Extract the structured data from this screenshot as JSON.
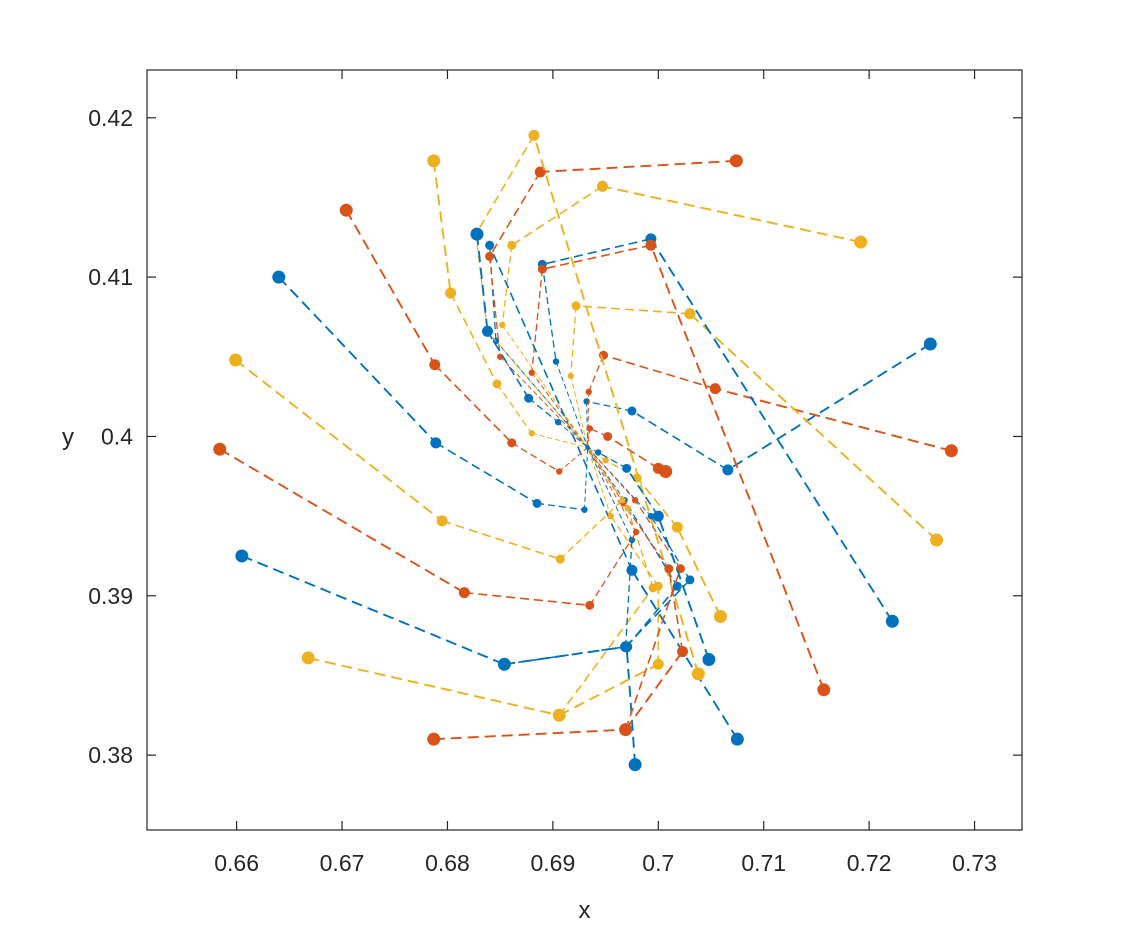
{
  "chart_data": {
    "type": "line",
    "title": "",
    "xlabel": "x",
    "ylabel": "y",
    "xlim": [
      0.6515,
      0.7345
    ],
    "ylim": [
      0.3753,
      0.423
    ],
    "xticks": [
      0.66,
      0.67,
      0.68,
      0.69,
      0.7,
      0.71,
      0.72,
      0.73
    ],
    "xtick_labels": [
      "0.66",
      "0.67",
      "0.68",
      "0.69",
      "0.7",
      "0.71",
      "0.72",
      "0.73"
    ],
    "yticks": [
      0.38,
      0.39,
      0.4,
      0.41,
      0.42
    ],
    "ytick_labels": [
      "0.38",
      "0.39",
      "0.4",
      "0.41",
      "0.42"
    ],
    "grid": false,
    "line_style": "dashed",
    "converge_to": [
      0.6933,
      0.3993
    ],
    "colors": [
      "#0072BD",
      "#D95319",
      "#EDB120"
    ],
    "series": [
      {
        "color": "#0072BD",
        "x": [
          0.7258,
          0.7066,
          0.6975,
          0.6932,
          0.6933
        ],
        "y": [
          0.4058,
          0.3979,
          0.4016,
          0.4022,
          0.3993
        ]
      },
      {
        "color": "#D95319",
        "x": [
          0.7278,
          0.7054,
          0.6948,
          0.6934,
          0.6933
        ],
        "y": [
          0.3991,
          0.403,
          0.4051,
          0.4028,
          0.3993
        ]
      },
      {
        "color": "#EDB120",
        "x": [
          0.7264,
          0.703,
          0.6922,
          0.6917,
          0.6933
        ],
        "y": [
          0.3935,
          0.4077,
          0.4082,
          0.4038,
          0.3993
        ]
      },
      {
        "color": "#0072BD",
        "x": [
          0.7222,
          0.6993,
          0.689,
          0.6903,
          0.6933
        ],
        "y": [
          0.3884,
          0.4124,
          0.4108,
          0.4047,
          0.3993
        ]
      },
      {
        "color": "#D95319",
        "x": [
          0.7157,
          0.6993,
          0.689,
          0.688,
          0.6933
        ],
        "y": [
          0.3841,
          0.412,
          0.4105,
          0.404,
          0.3993
        ]
      },
      {
        "color": "#EDB120",
        "x": [
          0.7192,
          0.6947,
          0.6861,
          0.6852,
          0.6933
        ],
        "y": [
          0.4122,
          0.4157,
          0.412,
          0.407,
          0.3993
        ]
      },
      {
        "color": "#0072BD",
        "x": [
          0.7075,
          0.6975,
          0.684,
          0.6846,
          0.6933
        ],
        "y": [
          0.381,
          0.3916,
          0.412,
          0.406,
          0.3993
        ]
      },
      {
        "color": "#D95319",
        "x": [
          0.7074,
          0.6888,
          0.684,
          0.685,
          0.6933
        ],
        "y": [
          0.4173,
          0.4166,
          0.4113,
          0.405,
          0.3993
        ]
      },
      {
        "color": "#EDB120",
        "x": [
          0.7038,
          0.6882,
          0.6827,
          0.6838,
          0.6933
        ],
        "y": [
          0.3851,
          0.4189,
          0.4127,
          0.4066,
          0.3993
        ]
      },
      {
        "color": "#0072BD",
        "x": [
          0.6978,
          0.697,
          0.7018,
          0.6968,
          0.6933
        ],
        "y": [
          0.3794,
          0.3868,
          0.3906,
          0.396,
          0.3993
        ]
      },
      {
        "color": "#D95319",
        "x": [
          0.6969,
          0.7023,
          0.701,
          0.6967,
          0.6933
        ],
        "y": [
          0.3816,
          0.3865,
          0.3917,
          0.3958,
          0.3993
        ]
      },
      {
        "color": "#EDB120",
        "x": [
          0.6906,
          0.7,
          0.7,
          0.6955,
          0.6933
        ],
        "y": [
          0.3825,
          0.3857,
          0.3906,
          0.395,
          0.3993
        ]
      },
      {
        "color": "#0072BD",
        "x": [
          0.6854,
          0.6969,
          0.703,
          0.6993,
          0.6933
        ],
        "y": [
          0.3857,
          0.3868,
          0.391,
          0.395,
          0.3993
        ]
      },
      {
        "color": "#D95319",
        "x": [
          0.6787,
          0.6969,
          0.7021,
          0.6978,
          0.6933
        ],
        "y": [
          0.381,
          0.3816,
          0.3917,
          0.396,
          0.3993
        ]
      },
      {
        "color": "#EDB120",
        "x": [
          0.6668,
          0.6906,
          0.6995,
          0.6971,
          0.6933
        ],
        "y": [
          0.3861,
          0.3825,
          0.3905,
          0.3955,
          0.3993
        ]
      },
      {
        "color": "#0072BD",
        "x": [
          0.6605,
          0.6854,
          0.6969,
          0.6975,
          0.6933
        ],
        "y": [
          0.3925,
          0.3857,
          0.3868,
          0.3935,
          0.3993
        ]
      },
      {
        "color": "#D95319",
        "x": [
          0.6584,
          0.6816,
          0.6935,
          0.6979,
          0.6933
        ],
        "y": [
          0.3992,
          0.3902,
          0.3894,
          0.394,
          0.3993
        ]
      },
      {
        "color": "#EDB120",
        "x": [
          0.6599,
          0.6795,
          0.6907,
          0.6966,
          0.6933
        ],
        "y": [
          0.4048,
          0.3947,
          0.3923,
          0.396,
          0.3993
        ]
      },
      {
        "color": "#0072BD",
        "x": [
          0.664,
          0.6789,
          0.6885,
          0.693,
          0.6933
        ],
        "y": [
          0.41,
          0.3996,
          0.3958,
          0.3954,
          0.3993
        ]
      },
      {
        "color": "#D95319",
        "x": [
          0.6704,
          0.6788,
          0.6861,
          0.6906,
          0.6933
        ],
        "y": [
          0.4142,
          0.4045,
          0.3996,
          0.3978,
          0.3993
        ]
      },
      {
        "color": "#EDB120",
        "x": [
          0.6787,
          0.6803,
          0.6847,
          0.688,
          0.6933
        ],
        "y": [
          0.4173,
          0.409,
          0.4033,
          0.4002,
          0.3993
        ]
      },
      {
        "color": "#0072BD",
        "x": [
          0.6828,
          0.6838,
          0.6877,
          0.6905,
          0.6933
        ],
        "y": [
          0.4127,
          0.4066,
          0.4024,
          0.4009,
          0.3993
        ]
      },
      {
        "color": "#D95319",
        "x": [
          0.7007,
          0.7,
          0.6952,
          0.6935,
          0.6933
        ],
        "y": [
          0.3978,
          0.398,
          0.4,
          0.4005,
          0.3993
        ]
      },
      {
        "color": "#EDB120",
        "x": [
          0.7059,
          0.7018,
          0.698,
          0.695,
          0.6933
        ],
        "y": [
          0.3887,
          0.3943,
          0.3974,
          0.3985,
          0.3993
        ]
      },
      {
        "color": "#0072BD",
        "x": [
          0.7048,
          0.7,
          0.697,
          0.6943,
          0.6933
        ],
        "y": [
          0.386,
          0.395,
          0.398,
          0.399,
          0.3993
        ]
      }
    ]
  }
}
